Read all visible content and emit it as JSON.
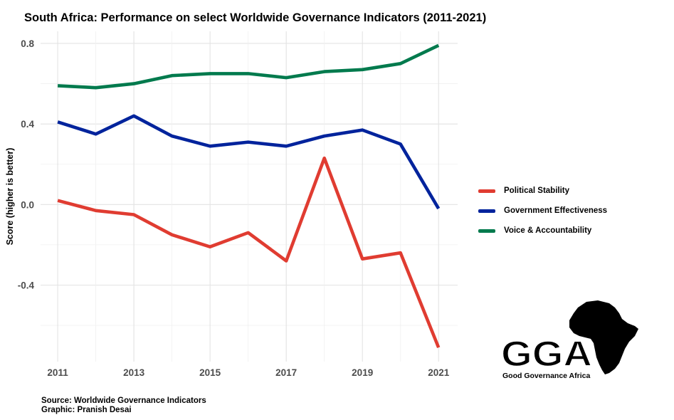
{
  "chart_data": {
    "type": "line",
    "title": "South Africa: Performance on select Worldwide Governance Indicators (2011-2021)",
    "xlabel": "",
    "ylabel": "Score (higher is better)",
    "x": [
      2011,
      2012,
      2013,
      2014,
      2015,
      2016,
      2017,
      2018,
      2019,
      2020,
      2021
    ],
    "x_ticks": [
      "2011",
      "2013",
      "2015",
      "2017",
      "2019",
      "2021"
    ],
    "y_ticks": [
      "0.8",
      "0.4",
      "0.0",
      "-0.4"
    ],
    "xlim": [
      2010.55,
      2021.5
    ],
    "ylim": [
      -0.78,
      0.86
    ],
    "grid": true,
    "legend_position": "right",
    "series": [
      {
        "name": "Political Stability",
        "color": "#E03C31",
        "values": [
          0.02,
          -0.03,
          -0.05,
          -0.15,
          -0.21,
          -0.14,
          -0.28,
          0.23,
          -0.27,
          -0.24,
          -0.71
        ]
      },
      {
        "name": "Government Effectiveness",
        "color": "#00239C",
        "values": [
          0.41,
          0.35,
          0.44,
          0.34,
          0.29,
          0.31,
          0.29,
          0.34,
          0.37,
          0.3,
          -0.02
        ]
      },
      {
        "name": "Voice & Accountability",
        "color": "#007A4D",
        "values": [
          0.59,
          0.58,
          0.6,
          0.64,
          0.65,
          0.65,
          0.63,
          0.66,
          0.67,
          0.7,
          0.79
        ]
      }
    ]
  },
  "caption": {
    "source": "Source: Worldwide Governance Indicators",
    "graphic": "Graphic: Pranish Desai"
  },
  "logo": {
    "wordmark": "GGA",
    "tagline": "Good Governance Africa"
  }
}
